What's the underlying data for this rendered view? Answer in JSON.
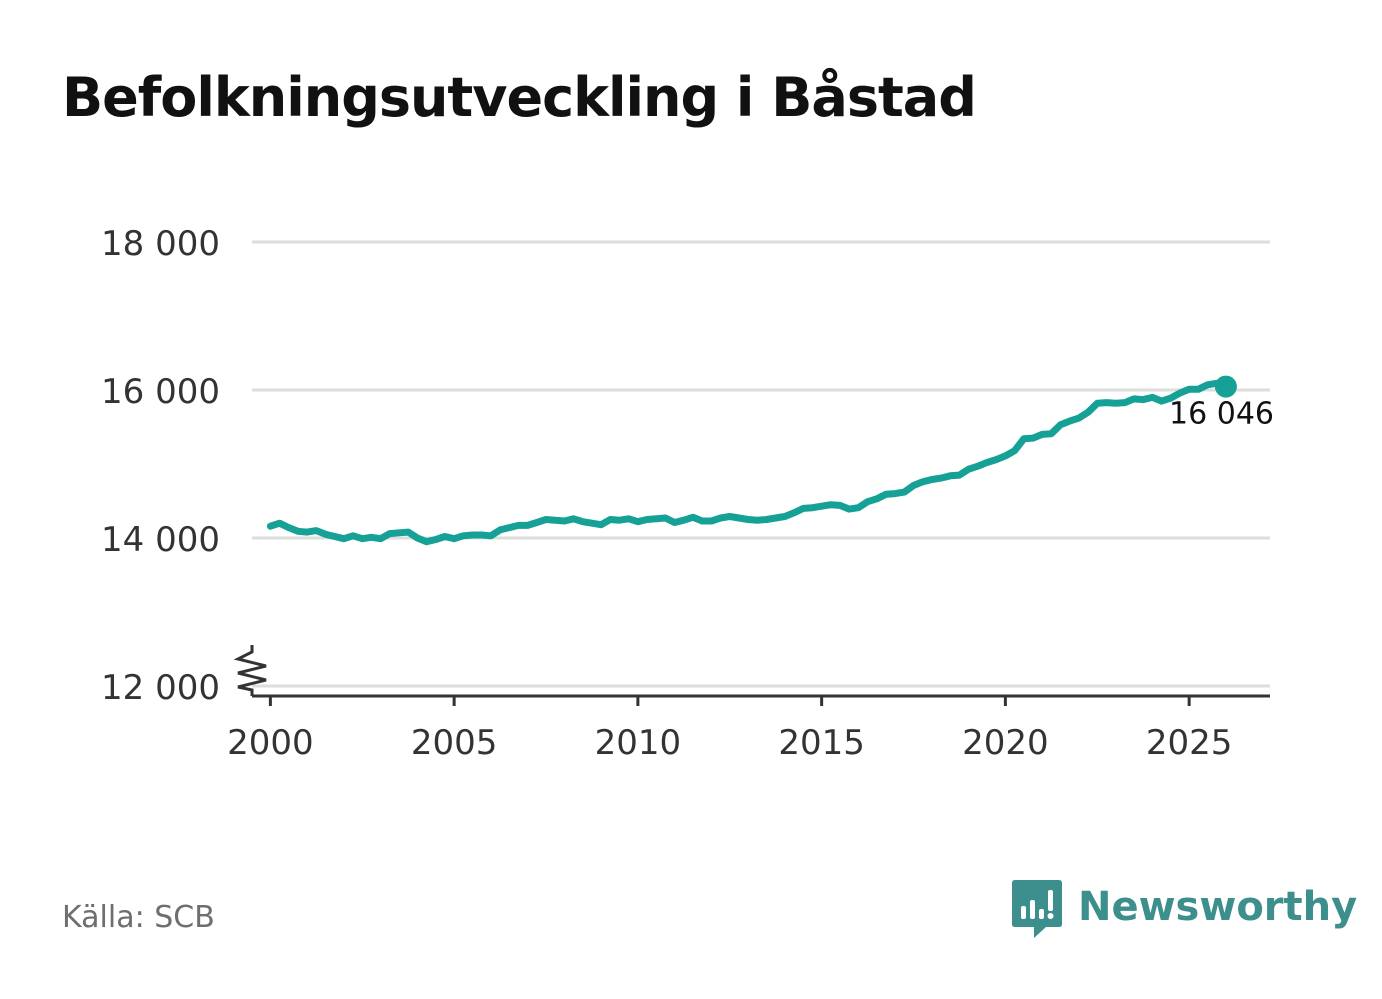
{
  "title": "Befolkningsutveckling i Båstad",
  "source": "Källa: SCB",
  "brand": {
    "name": "Newsworthy",
    "icon": "newsworthy-logo-icon",
    "color": "#3c8f8c"
  },
  "colors": {
    "line": "#16a196",
    "grid": "#dddddd",
    "axis": "#333333",
    "text": "#333333"
  },
  "chart_data": {
    "type": "line",
    "title": "Befolkningsutveckling i Båstad",
    "xlabel": "",
    "ylabel": "",
    "xlim": [
      1999.5,
      2027.2
    ],
    "ylim": [
      12000,
      18000
    ],
    "y_axis_break": true,
    "grid": "horizontal",
    "x_ticks": [
      2000,
      2005,
      2010,
      2015,
      2020,
      2025
    ],
    "x_tick_labels": [
      "2000",
      "2005",
      "2010",
      "2015",
      "2020",
      "2025"
    ],
    "y_ticks": [
      12000,
      14000,
      16000,
      18000
    ],
    "y_tick_labels": [
      "12 000",
      "14 000",
      "16 000",
      "18 000"
    ],
    "series": [
      {
        "x": [
          2000.0,
          2000.25,
          2000.5,
          2000.75,
          2001.0,
          2001.25,
          2001.5,
          2001.75,
          2002.0,
          2002.25,
          2002.5,
          2002.75,
          2003.0,
          2003.25,
          2003.5,
          2003.75,
          2004.0,
          2004.25,
          2004.5,
          2004.75,
          2005.0,
          2005.25,
          2005.5,
          2005.75,
          2006.0,
          2006.25,
          2006.5,
          2006.75,
          2007.0,
          2007.25,
          2007.5,
          2007.75,
          2008.0,
          2008.25,
          2008.5,
          2008.75,
          2009.0,
          2009.25,
          2009.5,
          2009.75,
          2010.0,
          2010.25,
          2010.5,
          2010.75,
          2011.0,
          2011.25,
          2011.5,
          2011.75,
          2012.0,
          2012.25,
          2012.5,
          2012.75,
          2013.0,
          2013.25,
          2013.5,
          2013.75,
          2014.0,
          2014.25,
          2014.5,
          2014.75,
          2015.0,
          2015.25,
          2015.5,
          2015.75,
          2016.0,
          2016.25,
          2016.5,
          2016.75,
          2017.0,
          2017.25,
          2017.5,
          2017.75,
          2018.0,
          2018.25,
          2018.5,
          2018.75,
          2019.0,
          2019.25,
          2019.5,
          2019.75,
          2020.0,
          2020.25,
          2020.5,
          2020.75,
          2021.0,
          2021.25,
          2021.5,
          2021.75,
          2022.0,
          2022.25,
          2022.5,
          2022.75,
          2023.0,
          2023.25,
          2023.5,
          2023.75,
          2024.0,
          2024.25,
          2024.5,
          2024.75,
          2025.0,
          2025.25,
          2025.5,
          2025.75,
          2026.0
        ],
        "values": [
          14160,
          14200,
          14140,
          14090,
          14080,
          14100,
          14050,
          14020,
          13990,
          14030,
          13990,
          14010,
          13990,
          14060,
          14070,
          14080,
          14000,
          13950,
          13980,
          14020,
          13990,
          14030,
          14040,
          14040,
          14030,
          14110,
          14140,
          14170,
          14170,
          14210,
          14250,
          14240,
          14230,
          14260,
          14220,
          14200,
          14180,
          14250,
          14240,
          14260,
          14220,
          14250,
          14260,
          14270,
          14210,
          14240,
          14280,
          14230,
          14230,
          14270,
          14290,
          14270,
          14250,
          14240,
          14250,
          14270,
          14290,
          14340,
          14400,
          14410,
          14430,
          14450,
          14440,
          14390,
          14410,
          14490,
          14530,
          14590,
          14600,
          14620,
          14710,
          14760,
          14790,
          14810,
          14840,
          14850,
          14930,
          14970,
          15020,
          15060,
          15110,
          15180,
          15340,
          15350,
          15400,
          15410,
          15530,
          15580,
          15620,
          15700,
          15820,
          15830,
          15820,
          15830,
          15880,
          15870,
          15900,
          15850,
          15890,
          15960,
          16010,
          16010,
          16070,
          16090,
          16046
        ]
      }
    ],
    "end_label": "16 046"
  }
}
